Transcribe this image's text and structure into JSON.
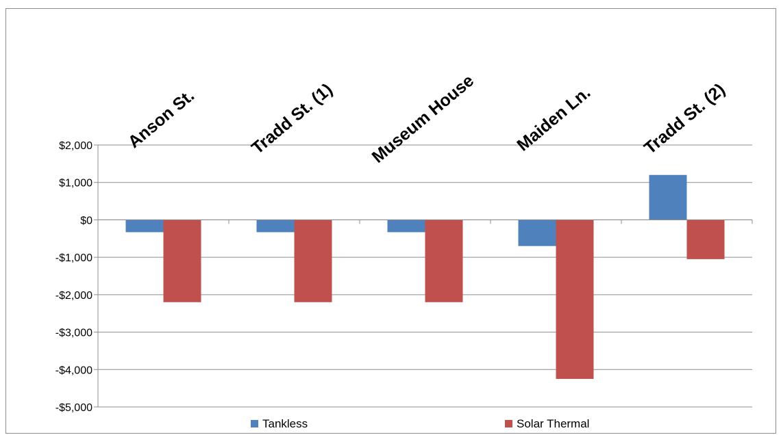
{
  "chart_data": {
    "type": "bar",
    "title": "",
    "xlabel": "",
    "ylabel": "",
    "categories": [
      "Anson St.",
      "Tradd St. (1)",
      "Museum House",
      "Maiden Ln.",
      "Tradd St. (2)"
    ],
    "series": [
      {
        "name": "Tankless",
        "color": "#4f81bd",
        "values": [
          -330,
          -330,
          -330,
          -700,
          1200
        ]
      },
      {
        "name": "Solar Thermal",
        "color": "#c0504d",
        "values": [
          -2200,
          -2200,
          -2200,
          -4250,
          -1050
        ]
      }
    ],
    "ylim": [
      -5000,
      2000
    ],
    "yticks": [
      2000,
      1000,
      0,
      -1000,
      -2000,
      -3000,
      -4000,
      -5000
    ],
    "ytick_labels": [
      "$2,000",
      "$1,000",
      "$0",
      "-$1,000",
      "-$2,000",
      "-$3,000",
      "-$4,000",
      "-$5,000"
    ],
    "grid": true,
    "legend_position": "bottom",
    "category_label_position": "top-rotated"
  }
}
